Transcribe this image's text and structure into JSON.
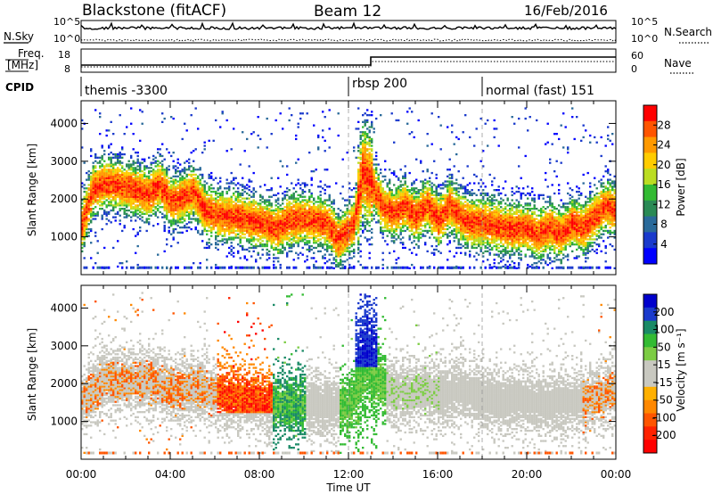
{
  "header": {
    "station": "Blackstone (fitACF)",
    "beam": "Beam 12",
    "date": "16/Feb/2016"
  },
  "param_panels": {
    "nsky_label": "N.Sky",
    "nsearch_label": "N.Search",
    "noise_ticks": [
      "10^5",
      "10^0"
    ],
    "freq_label_1": "Freq.",
    "freq_label_2": "[MHz]",
    "freq_ticks": [
      "18",
      "8"
    ],
    "nave_label": "Nave",
    "nave_ticks": [
      "60",
      "0"
    ],
    "cpid_label": "CPID",
    "cpid_modes": [
      {
        "name": "themis -3300",
        "start_hour": 0
      },
      {
        "name": "rbsp 200",
        "start_hour": 12
      },
      {
        "name": "normal (fast) 151",
        "start_hour": 18
      }
    ]
  },
  "time_axis": {
    "label": "Time UT",
    "ticks": [
      "00:00",
      "04:00",
      "08:00",
      "12:00",
      "16:00",
      "20:00",
      "00:00"
    ],
    "range_hours": [
      0,
      24
    ]
  },
  "chart_data": [
    {
      "type": "heatmap",
      "ylabel": "Slant Range [km]",
      "y_ticks": [
        1000,
        2000,
        3000,
        4000
      ],
      "ylim": [
        0,
        4600
      ],
      "colorbar": {
        "label": "Power [dB]",
        "ticks": [
          "28",
          "24",
          "20",
          "16",
          "12",
          "8",
          "4"
        ],
        "colors": [
          "#ff0000",
          "#ff5500",
          "#ff9900",
          "#ffcc00",
          "#bbdd22",
          "#33bb33",
          "#2a8a55",
          "#2a6a9a",
          "#1a3acc",
          "#0000ff"
        ]
      },
      "band_center_km": [
        [
          0,
          1300
        ],
        [
          0.5,
          2250
        ],
        [
          1,
          2400
        ],
        [
          2,
          2300
        ],
        [
          3,
          2100
        ],
        [
          3.5,
          2350
        ],
        [
          4,
          1900
        ],
        [
          4.5,
          2000
        ],
        [
          5,
          2200
        ],
        [
          5.5,
          1700
        ],
        [
          6,
          1550
        ],
        [
          7,
          1500
        ],
        [
          8,
          1350
        ],
        [
          8.8,
          1200
        ],
        [
          9.2,
          1400
        ],
        [
          10,
          1450
        ],
        [
          11,
          1350
        ],
        [
          11.5,
          900
        ],
        [
          12.2,
          1300
        ],
        [
          12.6,
          2700
        ],
        [
          13,
          2400
        ],
        [
          13.5,
          1800
        ],
        [
          14,
          1600
        ],
        [
          14.5,
          1800
        ],
        [
          15,
          1500
        ],
        [
          15.5,
          1850
        ],
        [
          16,
          1400
        ],
        [
          16.5,
          1800
        ],
        [
          17,
          1500
        ],
        [
          17.5,
          1350
        ],
        [
          18,
          1350
        ],
        [
          19,
          1200
        ],
        [
          20,
          1200
        ],
        [
          20.5,
          1050
        ],
        [
          21,
          1250
        ],
        [
          21.5,
          1050
        ],
        [
          22,
          1350
        ],
        [
          22.5,
          1200
        ],
        [
          23,
          1500
        ],
        [
          23.5,
          1800
        ],
        [
          24,
          1650
        ]
      ]
    },
    {
      "type": "heatmap",
      "ylabel": "Slant Range [km]",
      "y_ticks": [
        1000,
        2000,
        3000,
        4000
      ],
      "ylim": [
        0,
        4600
      ],
      "colorbar": {
        "label": "Velocity [m s⁻¹]",
        "ticks": [
          "200",
          "100",
          "50",
          "15",
          "-15",
          "-50",
          "-100",
          "-200"
        ],
        "colors": [
          "#0000cc",
          "#1a3acc",
          "#1a8a66",
          "#33bb33",
          "#7ccc44",
          "#c8c8c0",
          "#c8c8c0",
          "#ffb000",
          "#ff8800",
          "#ff5500",
          "#ff2200",
          "#ff0000"
        ]
      },
      "band_center_km": [
        [
          0,
          1500
        ],
        [
          1,
          2100
        ],
        [
          2,
          2000
        ],
        [
          3,
          2100
        ],
        [
          4,
          1800
        ],
        [
          5,
          1900
        ],
        [
          6,
          1700
        ],
        [
          7,
          1600
        ],
        [
          8,
          1500
        ],
        [
          9,
          1400
        ],
        [
          10,
          1450
        ],
        [
          11,
          1350
        ],
        [
          12,
          1400
        ],
        [
          12.8,
          2800
        ],
        [
          13.5,
          1900
        ],
        [
          14,
          1700
        ],
        [
          15,
          1800
        ],
        [
          16,
          1700
        ],
        [
          17,
          1800
        ],
        [
          18,
          1600
        ],
        [
          19,
          1500
        ],
        [
          20,
          1550
        ],
        [
          21,
          1450
        ],
        [
          22,
          1500
        ],
        [
          23,
          1600
        ],
        [
          24,
          1800
        ]
      ]
    }
  ]
}
